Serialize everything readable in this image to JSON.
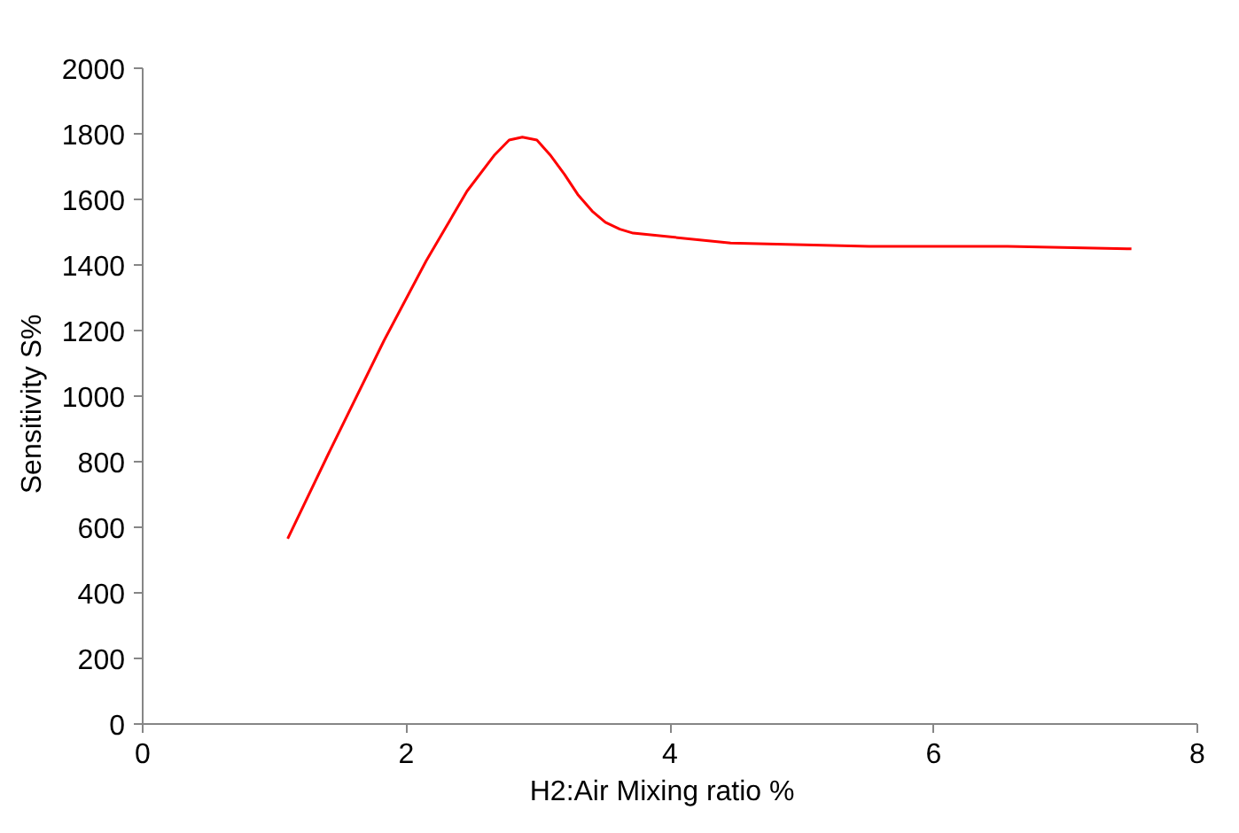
{
  "chart_data": {
    "type": "line",
    "xlabel": "H2:Air Mixing ratio   %",
    "ylabel": "Sensitivity   S%",
    "xlim": [
      0,
      8
    ],
    "xticks": [
      0,
      2,
      4,
      6,
      8
    ],
    "ylim": [
      0,
      2000
    ],
    "yticks": [
      0,
      200,
      400,
      600,
      800,
      1000,
      1200,
      1400,
      1600,
      1800,
      2000
    ],
    "grid": false,
    "marker": "none",
    "line_style": "solid",
    "series": [
      {
        "color": "#ff0000",
        "x": [
          1.1,
          1.41,
          1.83,
          2.15,
          2.46,
          2.67,
          2.78,
          2.88,
          2.99,
          3.09,
          3.2,
          3.3,
          3.41,
          3.51,
          3.62,
          3.72,
          4.46,
          5.51,
          6.56,
          7.5
        ],
        "values": [
          565,
          825,
          1169,
          1412,
          1625,
          1736,
          1781,
          1790,
          1781,
          1736,
          1676,
          1615,
          1564,
          1530,
          1509,
          1497,
          1467,
          1457,
          1457,
          1449
        ]
      }
    ]
  }
}
